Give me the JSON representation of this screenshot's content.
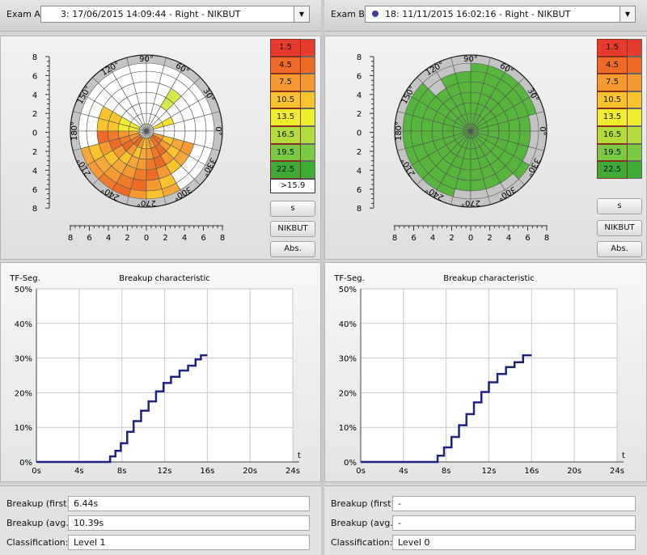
{
  "exam_a": {
    "label": "Exam A:",
    "selection": "3: 17/06/2015 14:09:44 - Right - NIKBUT",
    "override": ">15.9",
    "breakup_first_label": "Breakup (first):",
    "breakup_first": "6.44s",
    "breakup_avg_label": "Breakup (avg.):",
    "breakup_avg": "10.39s",
    "classification_label": "Classification:",
    "classification": "Level 1",
    "chart_data": {
      "type": "line",
      "title": "Breakup characteristic",
      "ylabel": "TF-Seg.",
      "xlabel": "t",
      "x_ticks": [
        "0s",
        "4s",
        "8s",
        "12s",
        "16s",
        "20s",
        "24s"
      ],
      "y_ticks": [
        "0%",
        "10%",
        "20%",
        "30%",
        "40%",
        "50%"
      ],
      "xlim": [
        0,
        24
      ],
      "ylim": [
        0,
        50
      ],
      "grid": true,
      "series": [
        {
          "color": "#1d237f",
          "x": [
            0,
            6.4,
            6.9,
            7.4,
            7.9,
            8.5,
            9.1,
            9.8,
            10.5,
            11.2,
            11.9,
            12.6,
            13.4,
            14.2,
            14.9,
            15.4,
            16
          ],
          "y": [
            0,
            0,
            1.6,
            3.2,
            5.4,
            8.7,
            11.8,
            14.8,
            17.5,
            20.4,
            22.8,
            24.6,
            26.4,
            27.8,
            29.6,
            30.8,
            30.8
          ]
        }
      ]
    }
  },
  "exam_b": {
    "label": "Exam B:",
    "selection": "18: 11/11/2015 16:02:16 - Right - NIKBUT",
    "breakup_first_label": "Breakup (first):",
    "breakup_first": "-",
    "breakup_avg_label": "Breakup (avg.):",
    "breakup_avg": "-",
    "classification_label": "Classification:",
    "classification": "Level 0",
    "chart_data": {
      "type": "line",
      "title": "Breakup characteristic",
      "ylabel": "TF-Seg.",
      "xlabel": "t",
      "x_ticks": [
        "0s",
        "4s",
        "8s",
        "12s",
        "16s",
        "20s",
        "24s"
      ],
      "y_ticks": [
        "0%",
        "10%",
        "20%",
        "30%",
        "40%",
        "50%"
      ],
      "xlim": [
        0,
        24
      ],
      "ylim": [
        0,
        50
      ],
      "grid": true,
      "series": [
        {
          "color": "#1d237f",
          "x": [
            0,
            6.6,
            7.2,
            7.8,
            8.5,
            9.2,
            9.9,
            10.6,
            11.3,
            12,
            12.8,
            13.6,
            14.4,
            15.2,
            16
          ],
          "y": [
            0,
            0,
            1.8,
            4.2,
            7.2,
            10.6,
            13.8,
            17.2,
            20.2,
            23,
            25.4,
            27.4,
            28.8,
            30.8,
            30.8
          ]
        }
      ]
    }
  },
  "scale": {
    "values": [
      "1.5",
      "4.5",
      "7.5",
      "10.5",
      "13.5",
      "16.5",
      "19.5",
      "22.5"
    ],
    "colors": [
      "#e53b2d",
      "#ee6a27",
      "#f59a30",
      "#f7c42e",
      "#eeee2e",
      "#b2db3c",
      "#7ac943",
      "#3fab37"
    ]
  },
  "buttons": {
    "s": "s",
    "nikbut": "NIKBUT",
    "abs": "Abs."
  },
  "polar": {
    "angle_labels": [
      "90°",
      "60°",
      "30°",
      "0°",
      "330°",
      "300°",
      "270°",
      "240°",
      "210°",
      "180°",
      "150°",
      "120°"
    ],
    "axis_ticks": [
      "8",
      "6",
      "4",
      "2",
      "0",
      "2",
      "4",
      "6",
      "8"
    ]
  }
}
